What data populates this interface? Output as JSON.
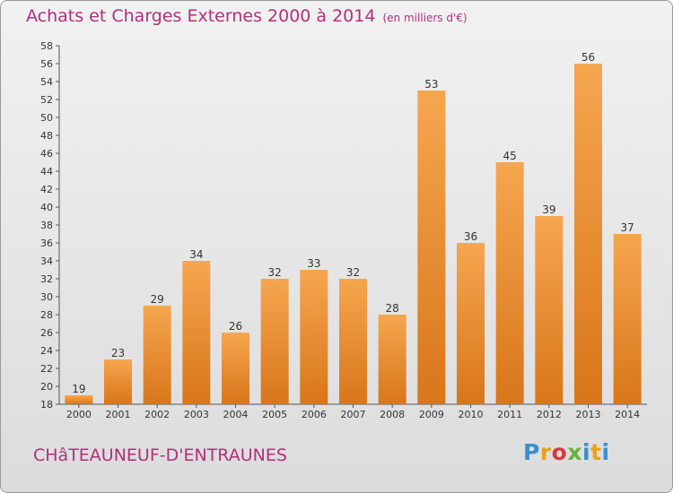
{
  "header": {
    "title": "Achats et Charges Externes 2000 à 2014",
    "subtitle": "(en milliers d'€)"
  },
  "footer": {
    "commune": "CHâTEAUNEUF-D'ENTRAUNES",
    "logo_text": "Proxiti"
  },
  "colors": {
    "bar_light": "#f6a650",
    "bar_dark": "#d8761a",
    "title": "#b0307d"
  },
  "chart_data": {
    "type": "bar",
    "title": "Achats et Charges Externes 2000 à 2014",
    "subtitle": "(en milliers d'€)",
    "categories": [
      "2000",
      "2001",
      "2002",
      "2003",
      "2004",
      "2005",
      "2006",
      "2007",
      "2008",
      "2009",
      "2010",
      "2011",
      "2012",
      "2013",
      "2014"
    ],
    "values": [
      19,
      23,
      29,
      34,
      26,
      32,
      33,
      32,
      28,
      53,
      36,
      45,
      39,
      56,
      37
    ],
    "xlabel": "",
    "ylabel": "",
    "ylim": [
      18,
      58
    ],
    "yticks": [
      18,
      20,
      22,
      24,
      26,
      28,
      30,
      32,
      34,
      36,
      38,
      40,
      42,
      44,
      46,
      48,
      50,
      52,
      54,
      56,
      58
    ],
    "grid": false,
    "legend": "none"
  }
}
